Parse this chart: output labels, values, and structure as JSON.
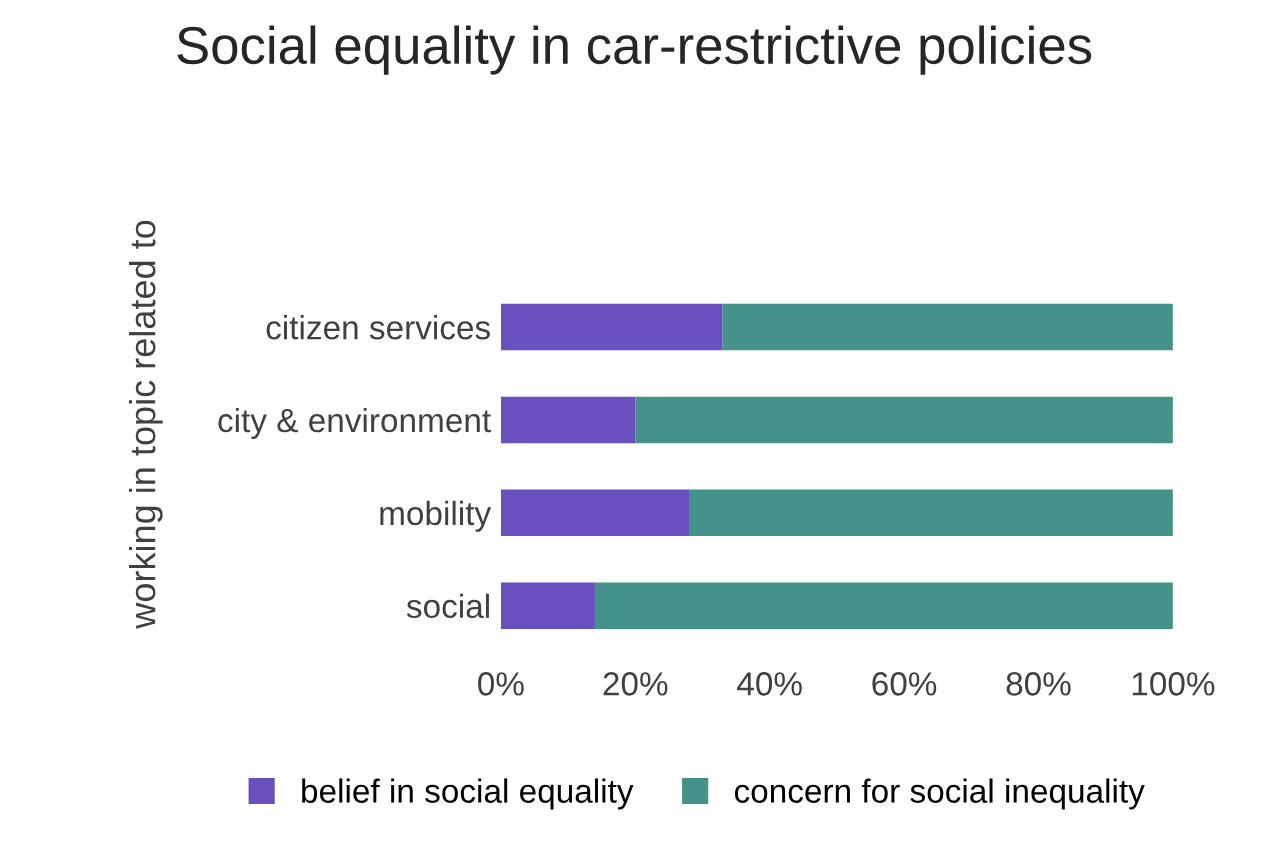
{
  "chart_data": {
    "type": "bar",
    "orientation": "horizontal",
    "stacked": true,
    "title": "Social equality in car-restrictive policies",
    "ylabel": "working in topic related to",
    "categories": [
      "citizen services",
      "city & environment",
      "mobility",
      "social"
    ],
    "series": [
      {
        "name": "belief in social equality",
        "color": "#6a4fbf",
        "values": [
          33,
          20,
          28,
          14
        ]
      },
      {
        "name": "concern for social inequality",
        "color": "#43938a",
        "values": [
          67,
          80,
          72,
          86
        ]
      }
    ],
    "xlim": [
      0,
      100
    ],
    "xticks": [
      {
        "value": 0,
        "label": "0%"
      },
      {
        "value": 20,
        "label": "20%"
      },
      {
        "value": 40,
        "label": "40%"
      },
      {
        "value": 60,
        "label": "60%"
      },
      {
        "value": 80,
        "label": "80%"
      },
      {
        "value": 100,
        "label": "100%"
      }
    ],
    "legend": "bottom",
    "grid": false
  }
}
